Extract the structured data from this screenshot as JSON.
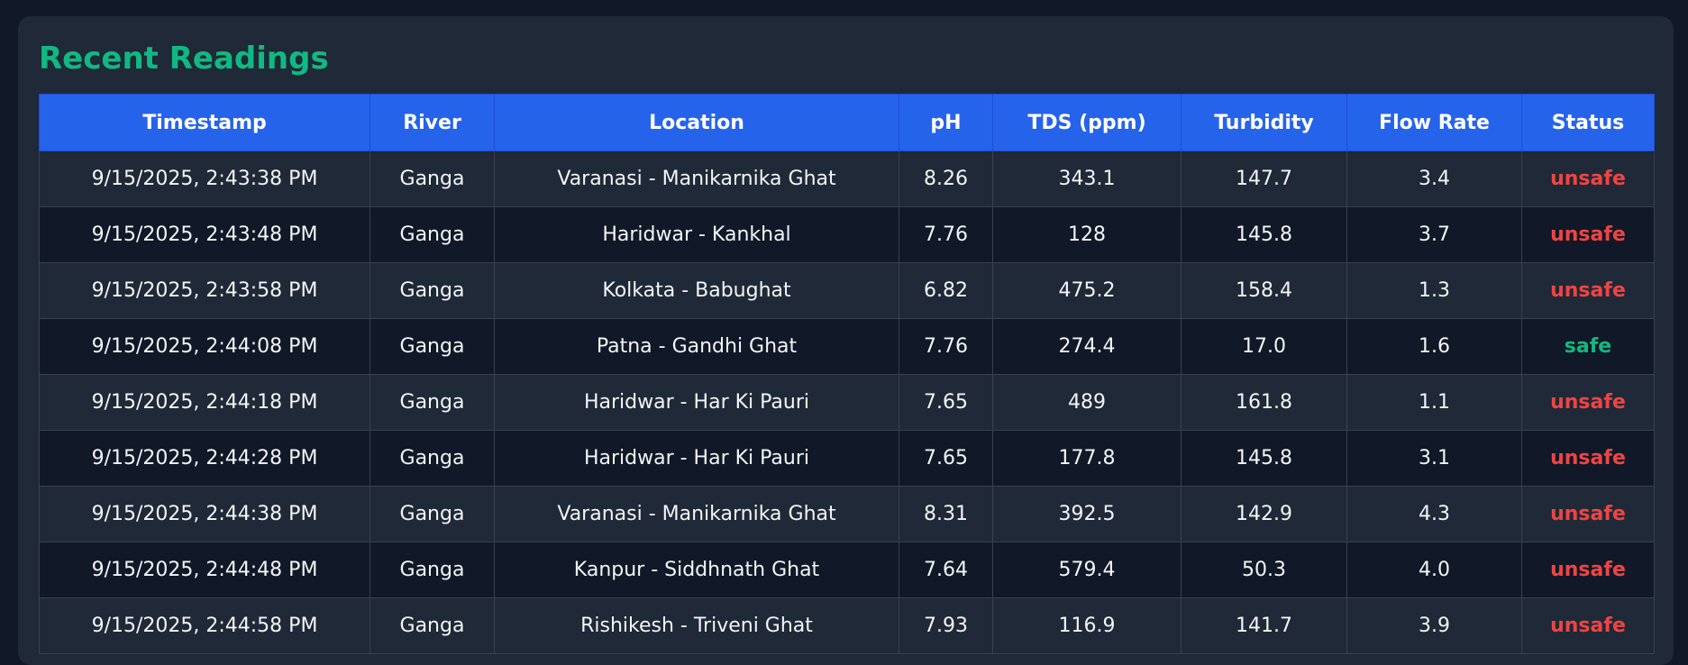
{
  "panel": {
    "title": "Recent Readings"
  },
  "colors": {
    "accent": "#10b981",
    "header_bg": "#2563eb",
    "unsafe": "#ef4444",
    "safe": "#10b981"
  },
  "table": {
    "headers": [
      "Timestamp",
      "River",
      "Location",
      "pH",
      "TDS (ppm)",
      "Turbidity",
      "Flow Rate",
      "Status"
    ],
    "rows": [
      {
        "timestamp": "9/15/2025, 2:43:38 PM",
        "river": "Ganga",
        "location": "Varanasi - Manikarnika Ghat",
        "ph": "8.26",
        "tds": "343.1",
        "turbidity": "147.7",
        "flow": "3.4",
        "status": "unsafe"
      },
      {
        "timestamp": "9/15/2025, 2:43:48 PM",
        "river": "Ganga",
        "location": "Haridwar - Kankhal",
        "ph": "7.76",
        "tds": "128",
        "turbidity": "145.8",
        "flow": "3.7",
        "status": "unsafe"
      },
      {
        "timestamp": "9/15/2025, 2:43:58 PM",
        "river": "Ganga",
        "location": "Kolkata - Babughat",
        "ph": "6.82",
        "tds": "475.2",
        "turbidity": "158.4",
        "flow": "1.3",
        "status": "unsafe"
      },
      {
        "timestamp": "9/15/2025, 2:44:08 PM",
        "river": "Ganga",
        "location": "Patna - Gandhi Ghat",
        "ph": "7.76",
        "tds": "274.4",
        "turbidity": "17.0",
        "flow": "1.6",
        "status": "safe"
      },
      {
        "timestamp": "9/15/2025, 2:44:18 PM",
        "river": "Ganga",
        "location": "Haridwar - Har Ki Pauri",
        "ph": "7.65",
        "tds": "489",
        "turbidity": "161.8",
        "flow": "1.1",
        "status": "unsafe"
      },
      {
        "timestamp": "9/15/2025, 2:44:28 PM",
        "river": "Ganga",
        "location": "Haridwar - Har Ki Pauri",
        "ph": "7.65",
        "tds": "177.8",
        "turbidity": "145.8",
        "flow": "3.1",
        "status": "unsafe"
      },
      {
        "timestamp": "9/15/2025, 2:44:38 PM",
        "river": "Ganga",
        "location": "Varanasi - Manikarnika Ghat",
        "ph": "8.31",
        "tds": "392.5",
        "turbidity": "142.9",
        "flow": "4.3",
        "status": "unsafe"
      },
      {
        "timestamp": "9/15/2025, 2:44:48 PM",
        "river": "Ganga",
        "location": "Kanpur - Siddhnath Ghat",
        "ph": "7.64",
        "tds": "579.4",
        "turbidity": "50.3",
        "flow": "4.0",
        "status": "unsafe"
      },
      {
        "timestamp": "9/15/2025, 2:44:58 PM",
        "river": "Ganga",
        "location": "Rishikesh - Triveni Ghat",
        "ph": "7.93",
        "tds": "116.9",
        "turbidity": "141.7",
        "flow": "3.9",
        "status": "unsafe"
      }
    ]
  }
}
